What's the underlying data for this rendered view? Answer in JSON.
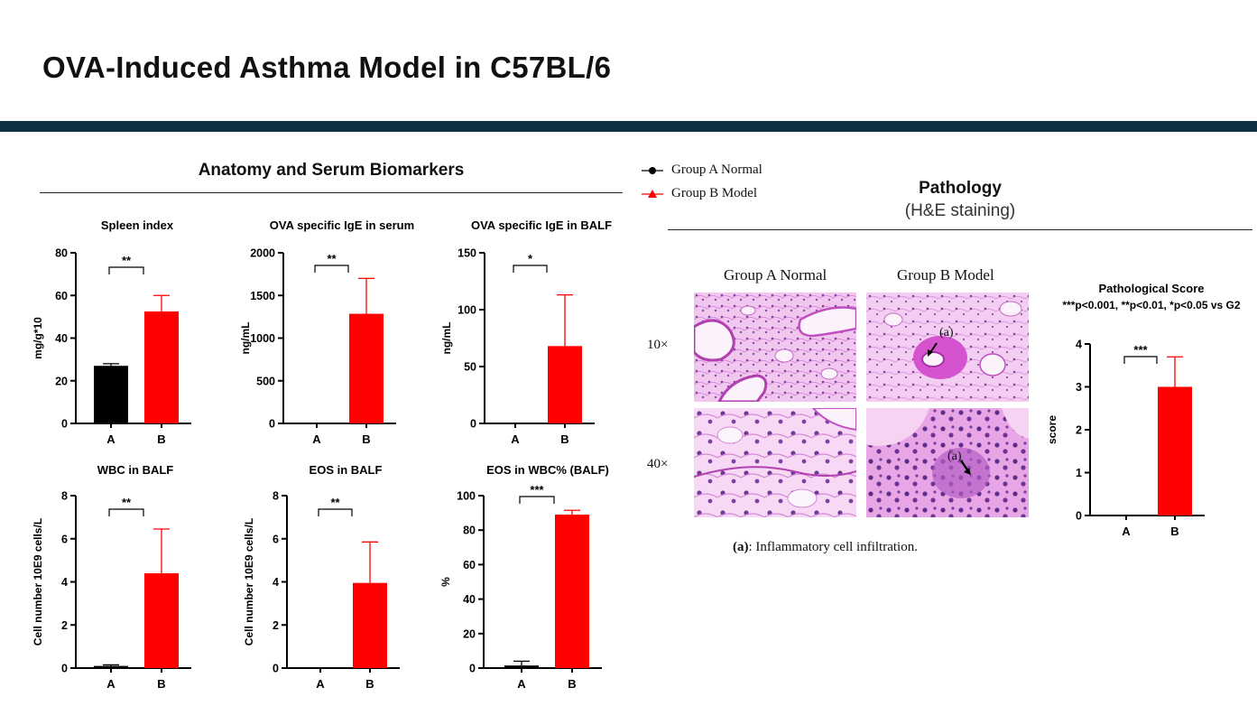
{
  "page": {
    "title": "OVA-Induced Asthma Model in C57BL/6",
    "left_section_title": "Anatomy and Serum Biomarkers",
    "right_section_title": "Pathology",
    "right_section_subtitle": "(H&E staining)"
  },
  "legend": [
    {
      "label": "Group A Normal",
      "color": "#000000",
      "marker": "circle"
    },
    {
      "label": "Group B Model",
      "color": "#ff0000",
      "marker": "triangle"
    }
  ],
  "pathology": {
    "columns": [
      "Group A Normal",
      "Group B Model"
    ],
    "rows": [
      "10×",
      "40×"
    ],
    "annotation_label": "(a)",
    "caption_key": "(a)",
    "caption_text": ": Inflammatory cell infiltration."
  },
  "colors": {
    "group_a": "#000000",
    "group_b": "#ff0000",
    "title_bar": "#0f3243"
  },
  "chart_data": [
    {
      "type": "bar",
      "title": "Spleen index",
      "ylabel": "mg/g*10",
      "categories": [
        "A",
        "B"
      ],
      "values": [
        27,
        52.5
      ],
      "errors": [
        1,
        7.5
      ],
      "ylim": [
        0,
        80
      ],
      "yticks": [
        0,
        20,
        40,
        60,
        80
      ],
      "significance": "**"
    },
    {
      "type": "bar",
      "title": "OVA specific IgE in serum",
      "ylabel": "ng/mL",
      "categories": [
        "A",
        "B"
      ],
      "values": [
        0,
        1285
      ],
      "errors": [
        0,
        415
      ],
      "ylim": [
        0,
        2000
      ],
      "yticks": [
        0,
        500,
        1000,
        1500,
        2000
      ],
      "significance": "**"
    },
    {
      "type": "bar",
      "title": "OVA specific IgE in BALF",
      "ylabel": "ng/mL",
      "categories": [
        "A",
        "B"
      ],
      "values": [
        0,
        68
      ],
      "errors": [
        0,
        45
      ],
      "ylim": [
        0,
        150
      ],
      "yticks": [
        0,
        50,
        100,
        150
      ],
      "significance": "*"
    },
    {
      "type": "bar",
      "title": "WBC in BALF",
      "ylabel": "Cell number 10E9 cells/L",
      "categories": [
        "A",
        "B"
      ],
      "values": [
        0.1,
        4.4
      ],
      "errors": [
        0.05,
        2.05
      ],
      "ylim": [
        0,
        8
      ],
      "yticks": [
        0,
        2,
        4,
        6,
        8
      ],
      "significance": "**"
    },
    {
      "type": "bar",
      "title": "EOS in BALF",
      "ylabel": "Cell number 10E9 cells/L",
      "categories": [
        "A",
        "B"
      ],
      "values": [
        0,
        3.95
      ],
      "errors": [
        0,
        1.9
      ],
      "ylim": [
        0,
        8
      ],
      "yticks": [
        0,
        2,
        4,
        6,
        8
      ],
      "significance": "**"
    },
    {
      "type": "bar",
      "title": "EOS in WBC% (BALF)",
      "ylabel": "%",
      "categories": [
        "A",
        "B"
      ],
      "values": [
        1.5,
        89
      ],
      "errors": [
        2.5,
        2.5
      ],
      "ylim": [
        0,
        100
      ],
      "yticks": [
        0,
        20,
        40,
        60,
        80,
        100
      ],
      "significance": "***"
    },
    {
      "type": "bar",
      "title": "Pathological Score",
      "subtitle": "***p<0.001, **p<0.01, *p<0.05 vs G2",
      "ylabel": "score",
      "categories": [
        "A",
        "B"
      ],
      "values": [
        0,
        3
      ],
      "errors": [
        0,
        0.7
      ],
      "ylim": [
        0,
        4
      ],
      "yticks": [
        0,
        1,
        2,
        3,
        4
      ],
      "significance": "***"
    }
  ]
}
